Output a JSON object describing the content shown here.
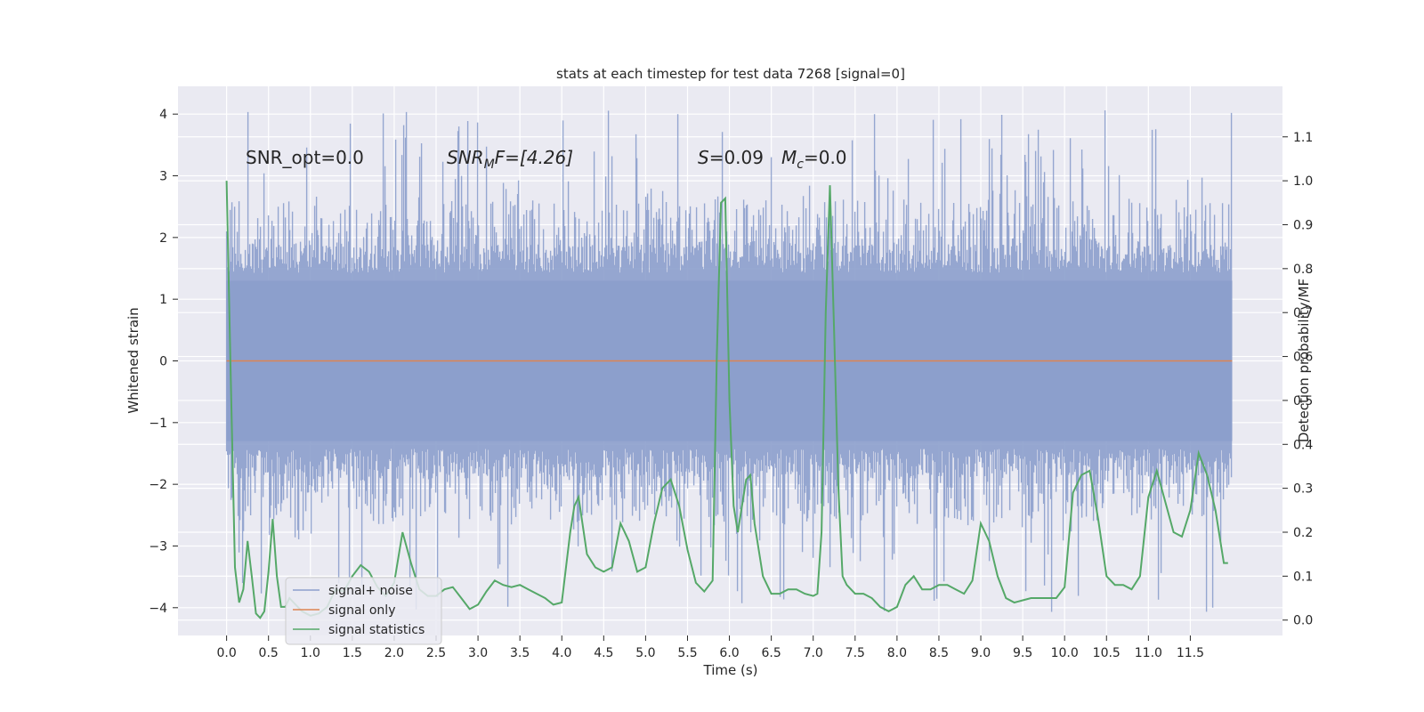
{
  "chart_data": {
    "type": "line",
    "title": "stats at each timestep for test data 7268 [signal=0]",
    "xlabel": "Time (s)",
    "ylabel": "Whitened strain",
    "y2label": "Detection probability/MF",
    "xlim": [
      -0.58,
      12.6
    ],
    "ylim": [
      -4.45,
      4.45
    ],
    "y2lim": [
      -0.035,
      1.215
    ],
    "xticks": [
      0.0,
      0.5,
      1.0,
      1.5,
      2.0,
      2.5,
      3.0,
      3.5,
      4.0,
      4.5,
      5.0,
      5.5,
      6.0,
      6.5,
      7.0,
      7.5,
      8.0,
      8.5,
      9.0,
      9.5,
      10.0,
      10.5,
      11.0,
      11.5
    ],
    "yticks": [
      4,
      3,
      2,
      1,
      0,
      -1,
      -2,
      -3,
      -4
    ],
    "ytick_labels": [
      "4",
      "3",
      "2",
      "1",
      "0",
      "−1",
      "−2",
      "−3",
      "−4"
    ],
    "y2ticks": [
      1.1,
      1.0,
      0.9,
      0.8,
      0.7,
      0.6,
      0.5,
      0.4,
      0.3,
      0.2,
      0.1,
      0.0
    ],
    "annotations": {
      "snr_opt": "SNR_opt=0.0",
      "snr_mf_italic": "SNR",
      "snr_mf_sub": "M",
      "snr_mf_rest": "F=[4.26]",
      "s_sym": "S",
      "s_val": "=0.09",
      "mc_sym": "M",
      "mc_sub": "c",
      "mc_val": "=0.0"
    },
    "colors": {
      "noise": "#8c9fcc",
      "signal": "#dd8452",
      "stats": "#55a868",
      "background": "#eaeaf2"
    },
    "legend": {
      "location": "lower-left",
      "entries": [
        "signal+ noise",
        "signal only",
        "signal statistics"
      ]
    },
    "noise": {
      "t_start": 0.0,
      "t_end": 12.0,
      "typical_range": [
        -1.9,
        1.9
      ],
      "extreme_range": [
        -4.1,
        4.1
      ],
      "seed": 7268
    },
    "series": [
      {
        "name": "signal statistics",
        "axis": "right",
        "x": [
          0.0,
          0.05,
          0.1,
          0.15,
          0.2,
          0.25,
          0.3,
          0.35,
          0.4,
          0.45,
          0.5,
          0.55,
          0.6,
          0.65,
          0.7,
          0.75,
          0.8,
          0.9,
          1.0,
          1.1,
          1.2,
          1.3,
          1.4,
          1.5,
          1.6,
          1.7,
          1.8,
          1.9,
          2.0,
          2.1,
          2.2,
          2.3,
          2.4,
          2.5,
          2.6,
          2.7,
          2.8,
          2.9,
          3.0,
          3.1,
          3.2,
          3.3,
          3.4,
          3.5,
          3.6,
          3.7,
          3.8,
          3.9,
          4.0,
          4.1,
          4.15,
          4.2,
          4.3,
          4.4,
          4.5,
          4.6,
          4.7,
          4.8,
          4.9,
          5.0,
          5.1,
          5.2,
          5.3,
          5.4,
          5.5,
          5.6,
          5.7,
          5.8,
          5.85,
          5.9,
          5.95,
          6.0,
          6.05,
          6.1,
          6.15,
          6.2,
          6.25,
          6.3,
          6.4,
          6.5,
          6.6,
          6.7,
          6.8,
          6.9,
          7.0,
          7.05,
          7.1,
          7.15,
          7.2,
          7.25,
          7.3,
          7.35,
          7.4,
          7.5,
          7.6,
          7.7,
          7.8,
          7.9,
          8.0,
          8.1,
          8.2,
          8.3,
          8.4,
          8.5,
          8.6,
          8.7,
          8.8,
          8.9,
          9.0,
          9.1,
          9.2,
          9.3,
          9.4,
          9.5,
          9.6,
          9.7,
          9.8,
          9.9,
          10.0,
          10.1,
          10.2,
          10.3,
          10.4,
          10.5,
          10.6,
          10.7,
          10.8,
          10.9,
          11.0,
          11.1,
          11.2,
          11.3,
          11.4,
          11.5,
          11.6,
          11.7,
          11.8,
          11.9,
          11.95
        ],
        "values": [
          1.0,
          0.55,
          0.12,
          0.04,
          0.07,
          0.18,
          0.1,
          0.015,
          0.005,
          0.02,
          0.11,
          0.23,
          0.1,
          0.03,
          0.03,
          0.05,
          0.04,
          0.02,
          0.01,
          0.015,
          0.03,
          0.07,
          0.065,
          0.1,
          0.125,
          0.11,
          0.075,
          0.055,
          0.085,
          0.2,
          0.13,
          0.07,
          0.055,
          0.055,
          0.07,
          0.075,
          0.05,
          0.025,
          0.035,
          0.065,
          0.09,
          0.08,
          0.075,
          0.08,
          0.07,
          0.06,
          0.05,
          0.035,
          0.04,
          0.2,
          0.26,
          0.28,
          0.15,
          0.12,
          0.11,
          0.12,
          0.22,
          0.18,
          0.11,
          0.12,
          0.22,
          0.3,
          0.32,
          0.26,
          0.16,
          0.085,
          0.065,
          0.09,
          0.6,
          0.95,
          0.96,
          0.5,
          0.26,
          0.2,
          0.26,
          0.32,
          0.33,
          0.22,
          0.1,
          0.06,
          0.06,
          0.07,
          0.07,
          0.06,
          0.055,
          0.06,
          0.2,
          0.7,
          0.99,
          0.65,
          0.3,
          0.1,
          0.08,
          0.06,
          0.06,
          0.05,
          0.03,
          0.02,
          0.03,
          0.08,
          0.1,
          0.07,
          0.07,
          0.08,
          0.08,
          0.07,
          0.06,
          0.09,
          0.22,
          0.18,
          0.1,
          0.05,
          0.04,
          0.045,
          0.05,
          0.05,
          0.05,
          0.05,
          0.075,
          0.29,
          0.33,
          0.34,
          0.23,
          0.1,
          0.08,
          0.08,
          0.07,
          0.1,
          0.28,
          0.34,
          0.27,
          0.2,
          0.19,
          0.25,
          0.38,
          0.33,
          0.25,
          0.13,
          0.13
        ]
      },
      {
        "name": "signal only",
        "axis": "left",
        "x": [
          0.0,
          12.0
        ],
        "values": [
          0.0,
          0.0
        ]
      }
    ]
  }
}
